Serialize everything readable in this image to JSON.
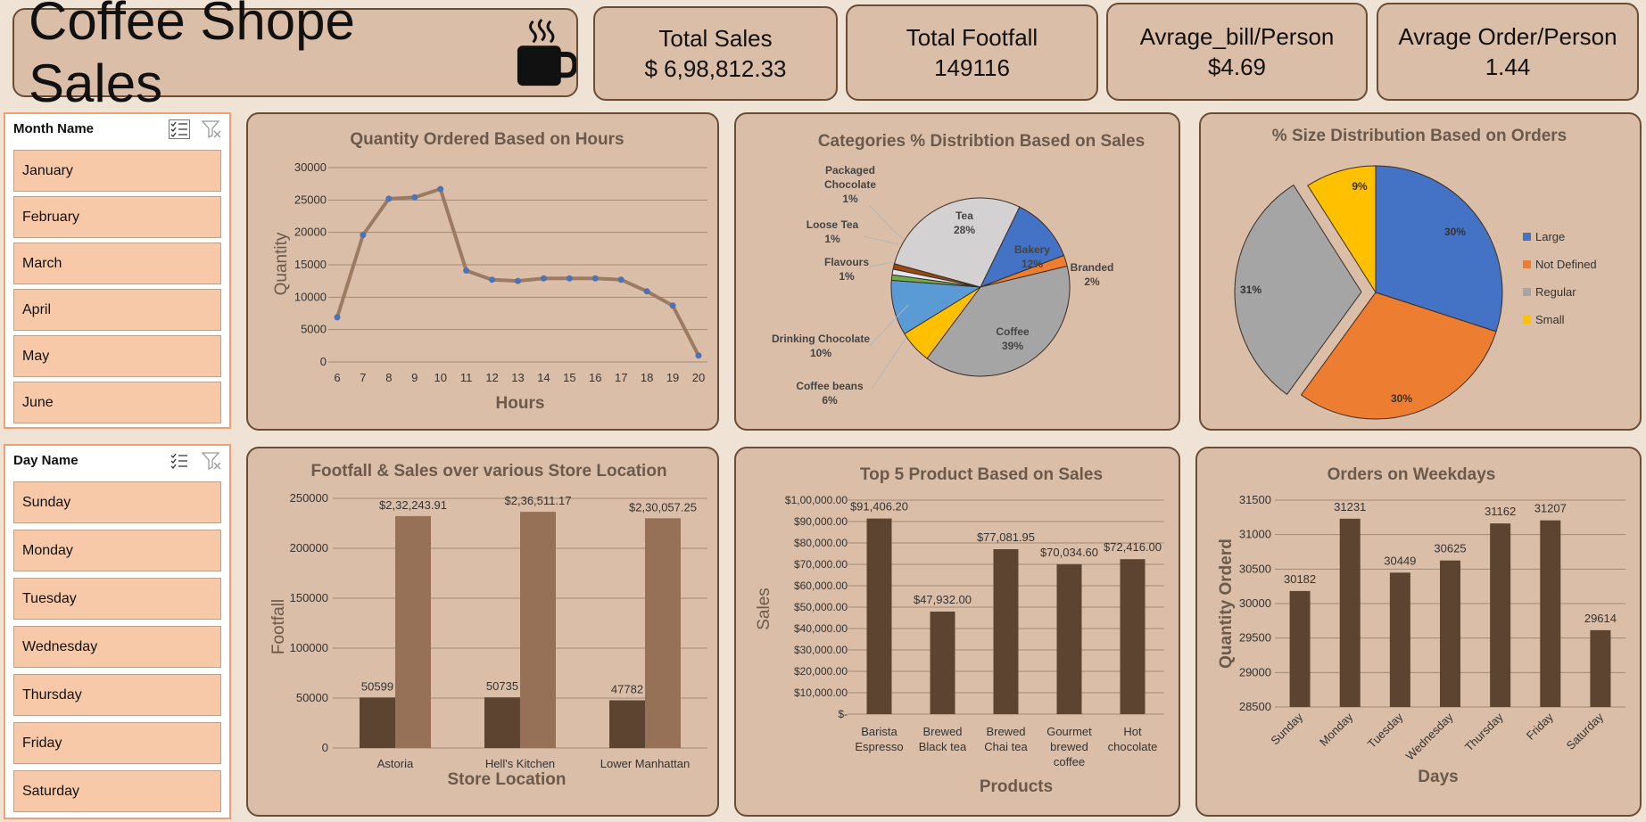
{
  "header": {
    "title": "Coffee Shope Sales",
    "kpis": [
      {
        "label": "Total Sales",
        "value": "$ 6,98,812.33"
      },
      {
        "label": "Total Footfall",
        "value": "149116"
      },
      {
        "label": "Avrage_bill/Person",
        "value": "$4.69"
      },
      {
        "label": "Avrage Order/Person",
        "value": "1.44"
      }
    ]
  },
  "slicers": {
    "month": {
      "title": "Month Name",
      "items": [
        "January",
        "February",
        "March",
        "April",
        "May",
        "June"
      ]
    },
    "day": {
      "title": "Day Name",
      "items": [
        "Sunday",
        "Monday",
        "Tuesday",
        "Wednesday",
        "Thursday",
        "Friday",
        "Saturday"
      ]
    }
  },
  "colors": {
    "card": "#dbbea7",
    "dark_brown": "#5c4430",
    "light_brown": "#967158",
    "line": "#9c7b63",
    "marker": "#4c73b8"
  },
  "chart_data": [
    {
      "id": "hours",
      "type": "line",
      "title": "Quantity Ordered Based on Hours",
      "xlabel": "Hours",
      "ylabel": "Quantity",
      "x": [
        "6",
        "7",
        "8",
        "9",
        "10",
        "11",
        "12",
        "13",
        "14",
        "15",
        "16",
        "17",
        "18",
        "19",
        "20"
      ],
      "values": [
        6900,
        19600,
        25200,
        25400,
        26700,
        14100,
        12700,
        12500,
        12900,
        12900,
        12900,
        12700,
        10900,
        8700,
        1000
      ],
      "ylim": [
        0,
        30000
      ],
      "yticks": [
        "0",
        "5000",
        "10000",
        "15000",
        "20000",
        "25000",
        "30000"
      ],
      "grid": true
    },
    {
      "id": "categories",
      "type": "pie",
      "title": "Categories % Distribtion Based on Sales",
      "slices": [
        {
          "name": "Bakery",
          "pct": 12,
          "label": "12%",
          "color": "#4472c4"
        },
        {
          "name": "Branded",
          "pct": 2,
          "label": "2%",
          "color": "#ed7d31"
        },
        {
          "name": "Coffee",
          "pct": 39,
          "label": "39%",
          "color": "#a5a5a5"
        },
        {
          "name": "Coffee beans",
          "pct": 6,
          "label": "6%",
          "color": "#ffc000"
        },
        {
          "name": "Drinking Chocolate",
          "pct": 10,
          "label": "10%",
          "color": "#5b9bd5"
        },
        {
          "name": "Flavours",
          "pct": 1,
          "label": "1%",
          "color": "#70ad47"
        },
        {
          "name": "Loose Tea",
          "pct": 1,
          "label": "1%",
          "color": "#dce6f5"
        },
        {
          "name": "Packaged Chocolate",
          "pct": 1,
          "label": "1%",
          "color": "#9e480e"
        },
        {
          "name": "Tea",
          "pct": 28,
          "label": "28%",
          "color": "#d3d1d2"
        }
      ],
      "labels": {
        "bakery": [
          "Bakery",
          "12%"
        ],
        "branded": [
          "Branded",
          "2%"
        ],
        "coffee": [
          "Coffee",
          "39%"
        ],
        "coffee_beans": [
          "Coffee beans",
          "6%"
        ],
        "drinking": [
          "Drinking Chocolate",
          "10%"
        ],
        "flavours": [
          "Flavours",
          "1%"
        ],
        "loose": [
          "Loose Tea",
          "1%"
        ],
        "packaged": [
          "Packaged",
          "Chocolate",
          "1%"
        ],
        "tea": [
          "Tea",
          "28%"
        ]
      }
    },
    {
      "id": "size",
      "type": "pie",
      "title": "% Size Distribution Based on Orders",
      "slices": [
        {
          "name": "Large",
          "pct": 30,
          "label": "30%",
          "color": "#4472c4"
        },
        {
          "name": "Not Defined",
          "pct": 30,
          "label": "30%",
          "color": "#ed7d31"
        },
        {
          "name": "Regular",
          "pct": 31,
          "label": "31%",
          "color": "#a5a5a5"
        },
        {
          "name": "Small",
          "pct": 9,
          "label": "9%",
          "color": "#ffc000"
        }
      ],
      "legend": [
        "Large",
        "Not Defined",
        "Regular",
        "Small"
      ],
      "legend_position": "right"
    },
    {
      "id": "footfall",
      "type": "bar",
      "title": "Footfall & Sales over various Store Location",
      "xlabel": "Store Location",
      "ylabel": "Footfall",
      "categories": [
        "Astoria",
        "Hell's Kitchen",
        "Lower Manhattan"
      ],
      "series": [
        {
          "values": [
            50599,
            50735,
            47782
          ],
          "labels": [
            "50599",
            "50735",
            "47782"
          ]
        },
        {
          "values": [
            232243.91,
            236511.17,
            230057.25
          ],
          "labels": [
            "$2,32,243.91",
            "$2,36,511.17",
            "$2,30,057.25"
          ]
        }
      ],
      "ylim": [
        0,
        250000
      ],
      "yticks": [
        "0",
        "50000",
        "100000",
        "150000",
        "200000",
        "250000"
      ],
      "grid": true
    },
    {
      "id": "products",
      "type": "bar",
      "title": "Top 5 Product Based on Sales",
      "xlabel": "Products",
      "ylabel": "Sales",
      "categories": [
        [
          "Barista",
          "Espresso"
        ],
        [
          "Brewed",
          "Black tea"
        ],
        [
          "Brewed",
          "Chai tea"
        ],
        [
          "Gourmet",
          "brewed",
          "coffee"
        ],
        [
          "Hot",
          "chocolate"
        ]
      ],
      "values": [
        91406.2,
        47932.0,
        77081.95,
        70034.6,
        72416.0
      ],
      "labels": [
        "$91,406.20",
        "$47,932.00",
        "$77,081.95",
        "$70,034.60",
        "$72,416.00"
      ],
      "ylim": [
        0,
        100000
      ],
      "yticks": [
        "$-",
        "$10,000.00",
        "$20,000.00",
        "$30,000.00",
        "$40,000.00",
        "$50,000.00",
        "$60,000.00",
        "$70,000.00",
        "$80,000.00",
        "$90,000.00",
        "$1,00,000.00"
      ],
      "grid": true
    },
    {
      "id": "weekdays",
      "type": "bar",
      "title": "Orders on Weekdays",
      "xlabel": "Days",
      "ylabel": "Quantity Orderd",
      "categories": [
        "Sunday",
        "Monday",
        "Tuesday",
        "Wednesday",
        "Thursday",
        "Friday",
        "Saturday"
      ],
      "values": [
        30182,
        31231,
        30449,
        30625,
        31162,
        31207,
        29614
      ],
      "labels": [
        "30182",
        "31231",
        "30449",
        "30625",
        "31162",
        "31207",
        "29614"
      ],
      "ylim": [
        28500,
        31500
      ],
      "yticks": [
        "28500",
        "29000",
        "29500",
        "30000",
        "30500",
        "31000",
        "31500"
      ],
      "grid": true
    }
  ]
}
